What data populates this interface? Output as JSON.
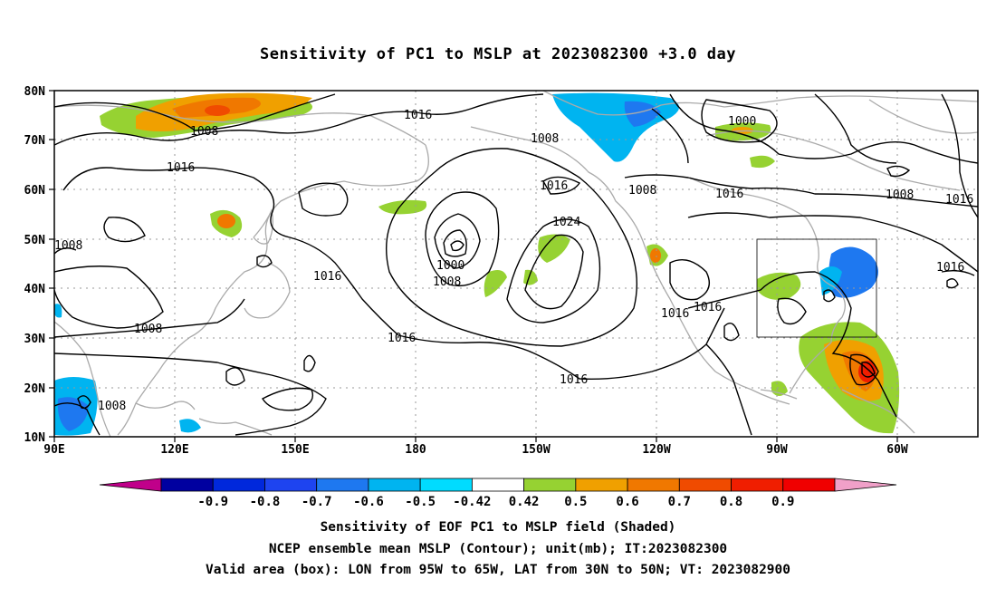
{
  "title": "Sensitivity of PC1 to MSLP at 2023082300 +3.0 day",
  "lat_labels": [
    "80N",
    "70N",
    "60N",
    "50N",
    "40N",
    "30N",
    "20N",
    "10N"
  ],
  "lon_labels": [
    "90E",
    "120E",
    "150E",
    "180",
    "150W",
    "120W",
    "90W",
    "60W"
  ],
  "contour_labels": [
    "1016",
    "1008",
    "1016",
    "1008",
    "1000",
    "1008",
    "1016",
    "1008",
    "1016",
    "1008",
    "1016",
    "1016",
    "1008",
    "1016",
    "1024",
    "1016",
    "1000",
    "1008",
    "1016",
    "1016",
    "1008",
    "1016"
  ],
  "colorbar": {
    "labels": [
      "-0.9",
      "-0.8",
      "-0.7",
      "-0.6",
      "-0.5",
      "-0.42",
      "0.42",
      "0.5",
      "0.6",
      "0.7",
      "0.8",
      "0.9"
    ],
    "colors": [
      "#c0008a",
      "#0000a0",
      "#0028dc",
      "#1e44f0",
      "#1e78f0",
      "#00b4f0",
      "#00dcff",
      "#ffffff",
      "#96d232",
      "#f0a000",
      "#f07800",
      "#f04b00",
      "#f01e00",
      "#f00000",
      "#f0a0c8"
    ]
  },
  "captions": [
    "Sensitivity of EOF PC1 to MSLP field (Shaded)",
    "NCEP ensemble mean MSLP (Contour); unit(mb); IT:2023082300",
    "Valid area (box): LON from 95W to 65W, LAT from 30N to 50N; VT: 2023082900"
  ]
}
